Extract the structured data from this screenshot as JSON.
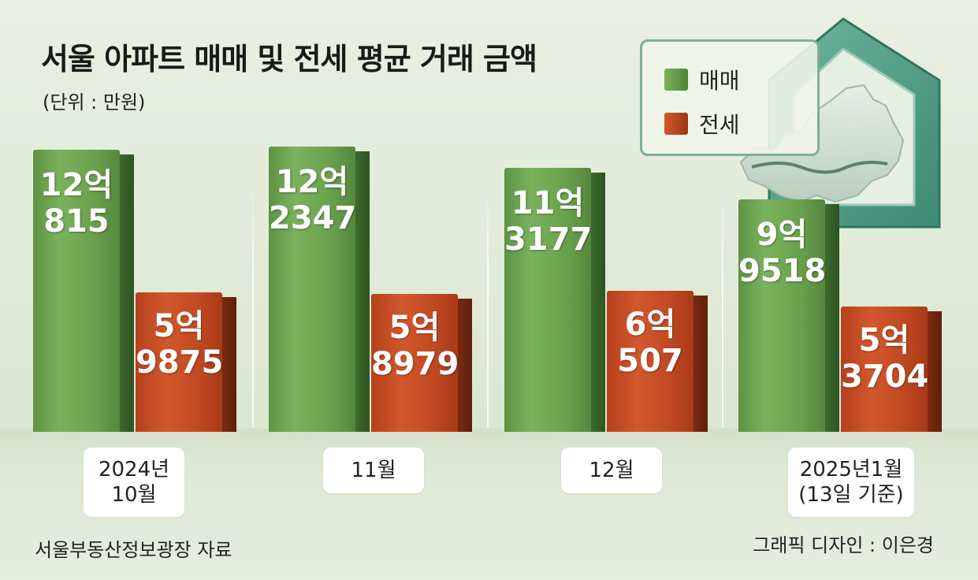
{
  "header": {
    "title": "서울 아파트 매매 및 전세 평균 거래 금액",
    "unit": "(단위 : 만원)"
  },
  "legend": {
    "sale": "매매",
    "jeonse": "전세"
  },
  "footer": {
    "source": "서울부동산정보광장 자료",
    "credit": "그래픽 디자인 : 이은경"
  },
  "colors": {
    "sale": "#6aa14d",
    "jeonse": "#c24a22"
  },
  "chart_data": {
    "type": "bar",
    "title": "서울 아파트 매매 및 전세 평균 거래 금액",
    "unit": "(단위 : 만원)",
    "categories": [
      "2024년\n10월",
      "11월",
      "12월",
      "2025년1월\n(13일 기준)"
    ],
    "series": [
      {
        "name": "매매",
        "values": [
          120815,
          122347,
          113177,
          99518
        ],
        "labels": [
          [
            "12억",
            "815"
          ],
          [
            "12억",
            "2347"
          ],
          [
            "11억",
            "3177"
          ],
          [
            "9억",
            "9518"
          ]
        ]
      },
      {
        "name": "전세",
        "values": [
          59875,
          58979,
          60507,
          53704
        ],
        "labels": [
          [
            "5억",
            "9875"
          ],
          [
            "5억",
            "8979"
          ],
          [
            "6억",
            "507"
          ],
          [
            "5억",
            "3704"
          ]
        ]
      }
    ],
    "legend_position": "top-right",
    "grid": false
  }
}
